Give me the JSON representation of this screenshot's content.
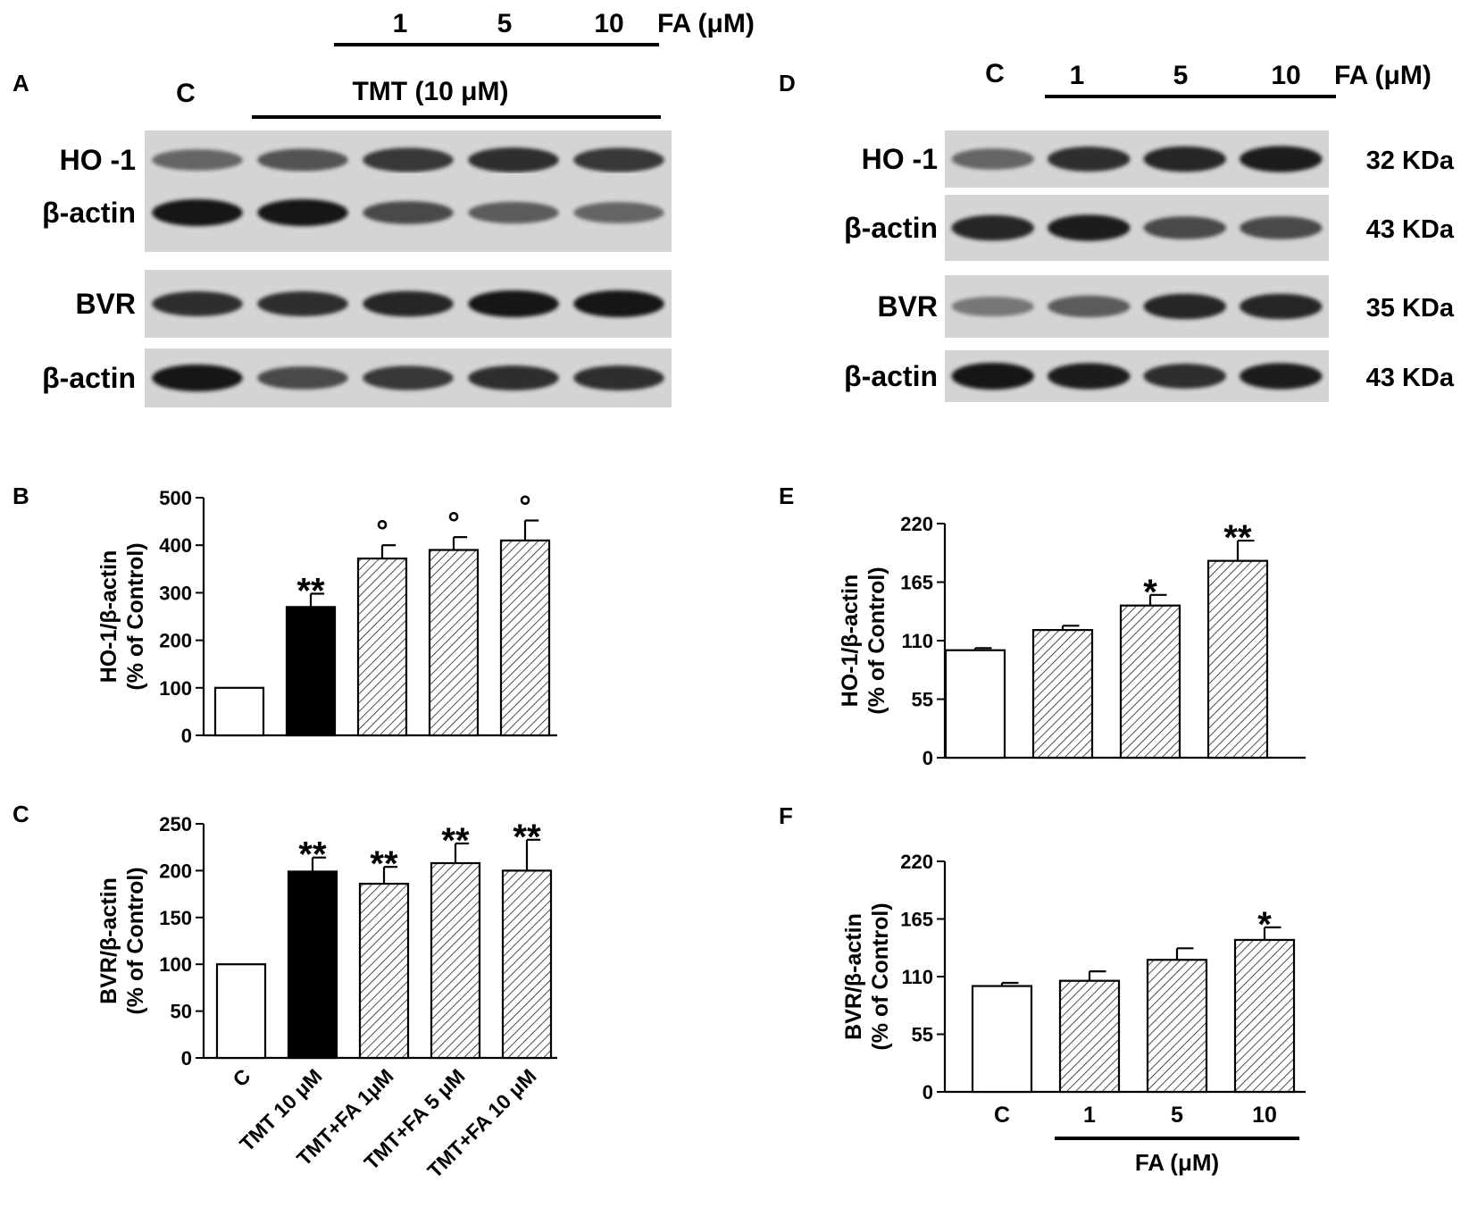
{
  "panels": {
    "A": {
      "letter": "A",
      "lane_label": "C",
      "treatment_label": "TMT (10 μM)",
      "fa_doses": [
        "1",
        "5",
        "10"
      ],
      "fa_label": "FA (μM)",
      "rows": [
        {
          "label": "HO -1",
          "intensity": [
            0.55,
            0.65,
            0.8,
            0.85,
            0.8
          ]
        },
        {
          "label": "β-actin",
          "intensity": [
            1.0,
            1.0,
            0.7,
            0.6,
            0.55
          ]
        },
        {
          "label": "BVR",
          "intensity": [
            0.85,
            0.85,
            0.9,
            1.0,
            1.0
          ]
        },
        {
          "label": "β-actin",
          "intensity": [
            1.0,
            0.7,
            0.8,
            0.85,
            0.85
          ]
        }
      ]
    },
    "D": {
      "letter": "D",
      "lane_label": "C",
      "fa_doses": [
        "1",
        "5",
        "10"
      ],
      "fa_label": "FA (μM)",
      "rows": [
        {
          "label": "HO -1",
          "mw": "32 KDa",
          "intensity": [
            0.55,
            0.85,
            0.9,
            0.95
          ]
        },
        {
          "label": "β-actin",
          "mw": "43 KDa",
          "intensity": [
            0.9,
            0.95,
            0.7,
            0.7
          ]
        },
        {
          "label": "BVR",
          "mw": "35 KDa",
          "intensity": [
            0.45,
            0.6,
            0.9,
            0.9
          ]
        },
        {
          "label": "β-actin",
          "mw": "43 KDa",
          "intensity": [
            1.0,
            0.95,
            0.85,
            0.95
          ]
        }
      ]
    }
  },
  "chart_data": [
    {
      "panel": "B",
      "type": "bar",
      "ylabel_line1": "HO-1/β-actin",
      "ylabel_line2": "(% of Control)",
      "ylim": [
        0,
        500
      ],
      "yticks": [
        "0",
        "100",
        "200",
        "300",
        "400",
        "500"
      ],
      "categories": [
        "C",
        "TMT 10 μM",
        "TMT+FA 1μM",
        "TMT+FA 5 μM",
        "TMT+FA 10 μM"
      ],
      "values": [
        100,
        270,
        372,
        390,
        410
      ],
      "errors": [
        0,
        28,
        28,
        27,
        42
      ],
      "fills": [
        "white",
        "black",
        "hatch",
        "hatch",
        "hatch"
      ],
      "annotations": [
        "",
        "**",
        "°",
        "°",
        "°"
      ],
      "show_tick_labels": false
    },
    {
      "panel": "C",
      "type": "bar",
      "ylabel_line1": "BVR/β-actin",
      "ylabel_line2": "(% of Control)",
      "ylim": [
        0,
        250
      ],
      "yticks": [
        "0",
        "50",
        "100",
        "150",
        "200",
        "250"
      ],
      "categories": [
        "C",
        "TMT 10 μM",
        "TMT+FA 1μM",
        "TMT+FA 5 μM",
        "TMT+FA 10 μM"
      ],
      "values": [
        100,
        199,
        186,
        208,
        200
      ],
      "errors": [
        0,
        15,
        18,
        21,
        33
      ],
      "fills": [
        "white",
        "black",
        "hatch",
        "hatch",
        "hatch"
      ],
      "annotations": [
        "",
        "**",
        "**",
        "**",
        "**"
      ],
      "show_tick_labels": true
    },
    {
      "panel": "E",
      "type": "bar",
      "ylabel_line1": "HO-1/β-actin",
      "ylabel_line2": "(% of Control)",
      "ylim": [
        0,
        220
      ],
      "yticks": [
        "0",
        "55",
        "110",
        "165",
        "220"
      ],
      "categories": [
        "C",
        "1",
        "5",
        "10"
      ],
      "values": [
        101,
        120,
        143,
        185
      ],
      "errors": [
        2,
        4,
        10,
        19
      ],
      "fills": [
        "white",
        "hatch",
        "hatch",
        "hatch"
      ],
      "annotations": [
        "",
        "",
        "*",
        "**"
      ],
      "show_tick_labels": false
    },
    {
      "panel": "F",
      "type": "bar",
      "ylabel_line1": "BVR/β-actin",
      "ylabel_line2": "(% of Control)",
      "ylim": [
        0,
        220
      ],
      "yticks": [
        "0",
        "55",
        "110",
        "165",
        "220"
      ],
      "categories": [
        "C",
        "1",
        "5",
        "10"
      ],
      "values": [
        101,
        106,
        126,
        145
      ],
      "errors": [
        3,
        9,
        11,
        12
      ],
      "fills": [
        "white",
        "hatch",
        "hatch",
        "hatch"
      ],
      "annotations": [
        "",
        "",
        "",
        "*"
      ],
      "show_tick_labels": true,
      "group_label": "FA (μM)"
    }
  ]
}
